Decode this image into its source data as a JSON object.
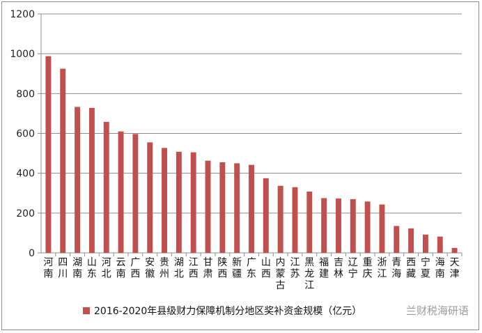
{
  "chart_data": {
    "type": "bar",
    "categories": [
      "河南",
      "四川",
      "湖南",
      "山东",
      "河北",
      "云南",
      "广西",
      "安徽",
      "贵州",
      "湖北",
      "江西",
      "甘肃",
      "陕西",
      "新疆",
      "广东",
      "山西",
      "内蒙古",
      "江苏",
      "黑龙江",
      "福建",
      "吉林",
      "辽宁",
      "重庆",
      "浙江",
      "青海",
      "西藏",
      "宁夏",
      "海南",
      "天津"
    ],
    "series": [
      {
        "name": "2016-2020年县级财力保障机制分地区奖补资金规模（亿元）",
        "values": [
          988,
          925,
          733,
          728,
          658,
          610,
          597,
          555,
          527,
          508,
          505,
          463,
          455,
          450,
          442,
          375,
          337,
          330,
          308,
          275,
          273,
          270,
          258,
          243,
          135,
          123,
          92,
          82,
          25
        ]
      }
    ],
    "yticks": [
      "0",
      "200",
      "400",
      "600",
      "800",
      "1000",
      "1200"
    ],
    "ylim": [
      0,
      1200
    ],
    "bar_color": "#c0504d",
    "grid": true,
    "legend_position": "bottom-left",
    "watermark": "兰财税海研语"
  }
}
